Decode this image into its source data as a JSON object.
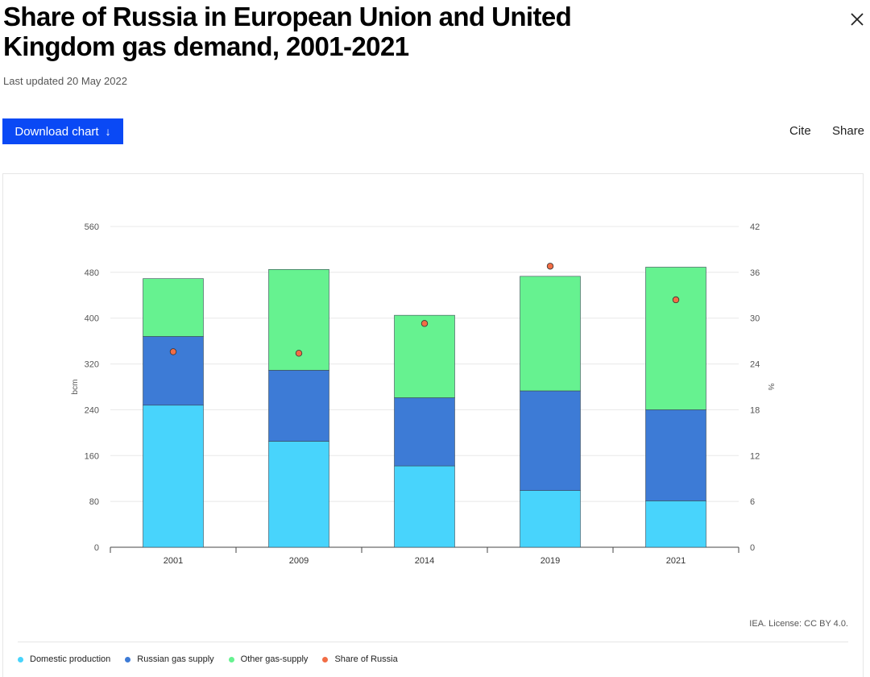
{
  "header": {
    "title": "Share of Russia in European Union and United Kingdom gas demand, 2001-2021",
    "updated": "Last updated 20 May 2022"
  },
  "actions": {
    "download_label": "Download chart",
    "download_icon": "arrow-down-icon",
    "cite_label": "Cite",
    "share_label": "Share",
    "close_icon": "close-icon"
  },
  "footer": {
    "license": "IEA. License: CC BY 4.0."
  },
  "chart_data": {
    "type": "bar",
    "stacked": true,
    "categories": [
      "2001",
      "2009",
      "2014",
      "2019",
      "2021"
    ],
    "series": [
      {
        "name": "Domestic production",
        "color": "#48d4fc",
        "axis": "left",
        "values": [
          248,
          185,
          142,
          99,
          81
        ]
      },
      {
        "name": "Russian gas supply",
        "color": "#3d7bd6",
        "axis": "left",
        "values": [
          120,
          124,
          119,
          174,
          159
        ]
      },
      {
        "name": "Other gas-supply",
        "color": "#66f290",
        "axis": "left",
        "values": [
          101,
          176,
          144,
          200,
          249
        ]
      },
      {
        "name": "Share of Russia",
        "color": "#f26d45",
        "axis": "right",
        "type": "scatter",
        "values": [
          25.6,
          25.4,
          29.3,
          36.8,
          32.4
        ]
      }
    ],
    "ylabel": "bcm",
    "y2label": "%",
    "ylim": [
      0,
      560
    ],
    "y2lim": [
      0,
      42
    ],
    "yticks": [
      "0",
      "80",
      "160",
      "240",
      "320",
      "400",
      "480",
      "560"
    ],
    "y2ticks": [
      "0",
      "6",
      "12",
      "18",
      "24",
      "30",
      "36",
      "42"
    ],
    "grid": true,
    "legend_position": "bottom"
  }
}
